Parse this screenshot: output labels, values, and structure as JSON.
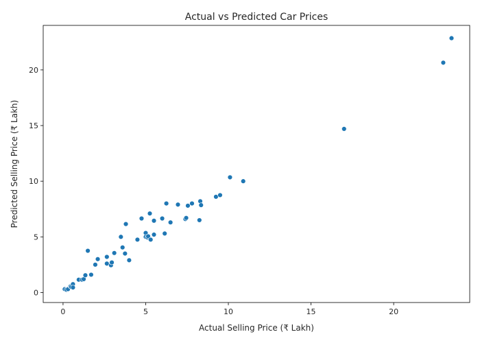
{
  "chart_data": {
    "type": "scatter",
    "title": "Actual vs Predicted Car Prices",
    "xlabel": "Actual Selling Price (₹ Lakh)",
    "ylabel": "Predicted Selling Price (₹ Lakh)",
    "xlim": [
      -1.2,
      24.6
    ],
    "ylim": [
      -0.9,
      24.0
    ],
    "xticks": [
      0,
      5,
      10,
      15,
      20
    ],
    "yticks": [
      0,
      5,
      10,
      15,
      20
    ],
    "grid": false,
    "point_color": "#1f77b4",
    "series": [
      {
        "x": [
          0.1,
          0.2,
          0.3,
          0.45,
          0.5,
          0.6,
          0.6,
          0.95,
          1.15,
          1.25,
          1.35,
          1.5,
          1.7,
          1.95,
          2.1,
          2.65,
          2.65,
          2.9,
          2.95,
          3.1,
          3.5,
          3.6,
          3.75,
          3.8,
          4.0,
          4.5,
          4.75,
          5.0,
          5.0,
          5.1,
          5.15,
          5.25,
          5.3,
          5.5,
          5.5,
          6.0,
          6.15,
          6.25,
          6.5,
          6.95,
          7.4,
          7.45,
          7.55,
          7.8,
          8.25,
          8.3,
          8.35,
          9.25,
          9.5,
          10.1,
          10.9,
          17.0,
          23.0,
          23.5
        ],
        "y": [
          0.3,
          0.25,
          0.3,
          0.55,
          0.5,
          0.75,
          0.45,
          1.15,
          1.15,
          1.2,
          1.55,
          3.75,
          1.6,
          2.5,
          3.0,
          3.2,
          2.6,
          2.45,
          2.7,
          3.55,
          5.0,
          4.05,
          3.5,
          6.15,
          2.9,
          4.75,
          6.65,
          5.35,
          5.0,
          4.95,
          5.05,
          7.1,
          4.75,
          6.45,
          5.2,
          6.65,
          5.3,
          8.0,
          6.3,
          7.9,
          6.6,
          6.7,
          7.8,
          8.0,
          6.5,
          8.2,
          7.85,
          8.6,
          8.75,
          10.35,
          10.0,
          14.7,
          20.65,
          22.85
        ]
      }
    ]
  }
}
